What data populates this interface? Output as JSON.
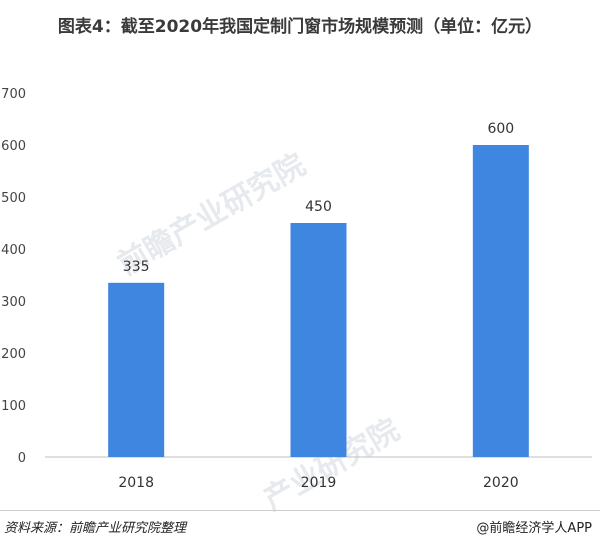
{
  "header": {
    "title": "图表4：截至2020年我国定制门窗市场规模预测（单位：亿元）"
  },
  "chart_data": {
    "type": "bar",
    "title": "图表4：截至2020年我国定制门窗市场规模预测（单位：亿元）",
    "categories": [
      "2018",
      "2019",
      "2020"
    ],
    "values": [
      335,
      450,
      600
    ],
    "data_labels": [
      "335",
      "450",
      "600"
    ],
    "xlabel": "",
    "ylabel": "",
    "ylim": [
      0,
      700
    ],
    "yticks": [
      "0",
      "100",
      "200",
      "300",
      "400",
      "500",
      "600",
      "700"
    ],
    "grid": false,
    "legend": "none",
    "bar_color": "#3f86e0"
  },
  "footer": {
    "source": "资料来源：前瞻产业研究院整理",
    "credit": "@前瞻经济学人APP"
  },
  "watermark": {
    "text1": "前瞻产业研究院",
    "text2": "产业研究院"
  }
}
